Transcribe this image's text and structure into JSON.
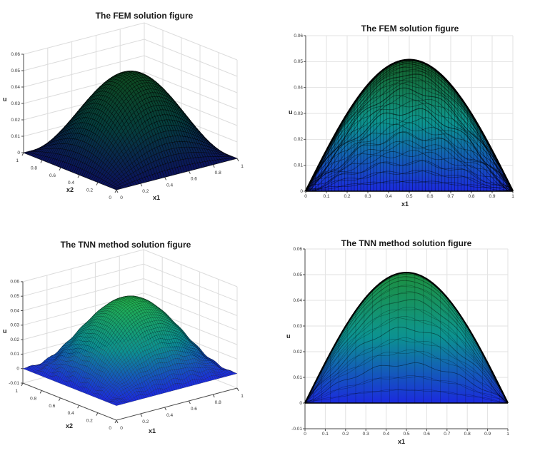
{
  "figure": {
    "background": "#ffffff"
  },
  "colors": {
    "surface_low": "#1b2ade",
    "surface_mid": "#0c9191",
    "surface_high": "#23b14e",
    "grid_line": "#e2e2e2",
    "wall_grid": "#dcdcdc",
    "axis_line": "#4a4a4a",
    "tick_label": "#333333",
    "title": "#1a1a1a",
    "mesh_line": "#000000"
  },
  "chart_data": [
    {
      "id": "fem-3d",
      "type": "surface",
      "title": "The FEM solution figure",
      "xlabel": "x1",
      "ylabel": "x2",
      "zlabel": "u",
      "xlim": [
        0,
        1
      ],
      "ylim": [
        0,
        1
      ],
      "zlim": [
        0,
        0.06
      ],
      "xticks": [
        "0",
        "0.2",
        "0.4",
        "0.6",
        "0.8",
        "1"
      ],
      "yticks": [
        "0",
        "0.2",
        "0.4",
        "0.6",
        "0.8",
        "1"
      ],
      "zticks": [
        "0",
        "0.01",
        "0.02",
        "0.03",
        "0.04",
        "0.05",
        "0.06"
      ],
      "amplitude": 0.0507,
      "peak": 0.051,
      "formula": "u(x1,x2) ≈ 0.0507·sin(π·x1)·sin(π·x2)",
      "colormap": "blue (low) → teal → green (high), black mesh edges",
      "grid": true,
      "legend": null
    },
    {
      "id": "fem-2d",
      "type": "area",
      "title": "The FEM solution figure",
      "xlabel": "x1",
      "ylabel": "u",
      "xlim": [
        0,
        1
      ],
      "ylim": [
        0,
        0.06
      ],
      "xticks": [
        "0",
        "0.1",
        "0.2",
        "0.3",
        "0.4",
        "0.5",
        "0.6",
        "0.7",
        "0.8",
        "0.9",
        "1"
      ],
      "yticks": [
        "0",
        "0.01",
        "0.02",
        "0.03",
        "0.04",
        "0.05",
        "0.06"
      ],
      "x": [
        0,
        0.05,
        0.1,
        0.15,
        0.2,
        0.25,
        0.3,
        0.35,
        0.4,
        0.45,
        0.5,
        0.55,
        0.6,
        0.65,
        0.7,
        0.75,
        0.8,
        0.85,
        0.9,
        0.95,
        1
      ],
      "u": [
        0,
        0.0079,
        0.0157,
        0.023,
        0.0298,
        0.0359,
        0.041,
        0.0452,
        0.0482,
        0.0501,
        0.0507,
        0.0501,
        0.0482,
        0.0452,
        0.041,
        0.0359,
        0.0298,
        0.023,
        0.0157,
        0.0079,
        0
      ],
      "amplitude": 0.0507,
      "peak": 0.051,
      "formula": "envelope u(x1) ≈ 0.0507·sin(π·x1)",
      "grid": true,
      "legend": null
    },
    {
      "id": "tnn-3d",
      "type": "surface",
      "title": "The TNN method solution figure",
      "xlabel": "x1",
      "ylabel": "x2",
      "zlabel": "u",
      "xlim": [
        0,
        1
      ],
      "ylim": [
        0,
        1
      ],
      "zlim": [
        -0.01,
        0.06
      ],
      "xticks": [
        "0",
        "0.2",
        "0.4",
        "0.6",
        "0.8",
        "1"
      ],
      "yticks": [
        "0",
        "0.2",
        "0.4",
        "0.6",
        "0.8",
        "1"
      ],
      "zticks": [
        "-0.01",
        "0",
        "0.01",
        "0.02",
        "0.03",
        "0.04",
        "0.05",
        "0.06"
      ],
      "amplitude": 0.0508,
      "peak": 0.051,
      "formula": "u(x1,x2) ≈ 0.0508·sin(π·x1)·sin(π·x2) with small boundary oscillations",
      "colormap": "blue (low) → teal → green (high), black mesh edges",
      "grid": true,
      "legend": null
    },
    {
      "id": "tnn-2d",
      "type": "area",
      "title": "The TNN method solution figure",
      "xlabel": "x1",
      "ylabel": "u",
      "xlim": [
        0,
        1
      ],
      "ylim": [
        -0.01,
        0.06
      ],
      "xticks": [
        "0",
        "0.1",
        "0.2",
        "0.3",
        "0.4",
        "0.5",
        "0.6",
        "0.7",
        "0.8",
        "0.9",
        "1"
      ],
      "yticks": [
        "-0.01",
        "0",
        "0.01",
        "0.02",
        "0.03",
        "0.04",
        "0.05",
        "0.06"
      ],
      "x": [
        0,
        0.05,
        0.1,
        0.15,
        0.2,
        0.25,
        0.3,
        0.35,
        0.4,
        0.45,
        0.5,
        0.55,
        0.6,
        0.65,
        0.7,
        0.75,
        0.8,
        0.85,
        0.9,
        0.95,
        1
      ],
      "u": [
        0,
        0.0079,
        0.0157,
        0.0231,
        0.0299,
        0.0359,
        0.0411,
        0.0453,
        0.0483,
        0.0502,
        0.0508,
        0.0502,
        0.0483,
        0.0453,
        0.0411,
        0.0359,
        0.0299,
        0.0231,
        0.0157,
        0.0079,
        0
      ],
      "amplitude": 0.0508,
      "peak": 0.051,
      "formula": "envelope u(x1) ≈ 0.0508·sin(π·x1)",
      "grid": true,
      "legend": null
    }
  ]
}
